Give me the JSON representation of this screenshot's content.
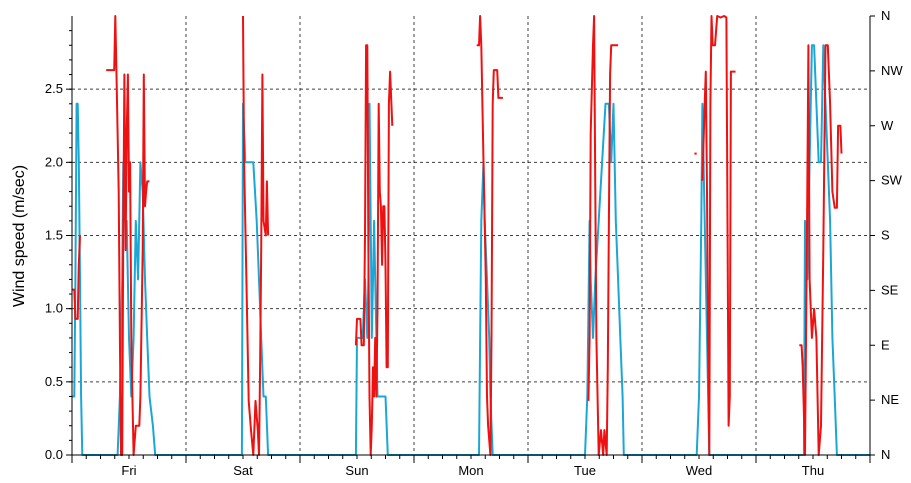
{
  "chart_data": {
    "type": "line",
    "ylabel": "Wind speed (m/sec)",
    "ylim": [
      0,
      3.0
    ],
    "yticks": [
      "0.0",
      "0.5",
      "1.0",
      "1.5",
      "2.0",
      "2.5"
    ],
    "y2ticks": [
      "N",
      "NE",
      "E",
      "SE",
      "S",
      "SW",
      "W",
      "NW",
      "N"
    ],
    "xlim": [
      0,
      7
    ],
    "categories": [
      "Fri",
      "Sat",
      "Sun",
      "Mon",
      "Tue",
      "Wed",
      "Thu"
    ],
    "grid": true,
    "colors": {
      "speed": "#1aa7d6",
      "direction": "#ee1111"
    },
    "series": [
      {
        "key": "speed",
        "axis": "left",
        "points": [
          [
            0.0,
            0.4
          ],
          [
            0.02,
            0.4
          ],
          [
            0.03,
            1.2
          ],
          [
            0.04,
            2.4
          ],
          [
            0.05,
            2.4
          ],
          [
            0.06,
            2.0
          ],
          [
            0.07,
            1.2
          ],
          [
            0.08,
            0.4
          ],
          [
            0.09,
            0.0
          ],
          [
            0.4,
            0.0
          ],
          [
            0.42,
            0.4
          ],
          [
            0.44,
            1.2
          ],
          [
            0.45,
            2.0
          ],
          [
            0.46,
            1.6
          ],
          [
            0.48,
            1.6
          ],
          [
            0.5,
            0.8
          ],
          [
            0.52,
            0.4
          ],
          [
            0.54,
            0.8
          ],
          [
            0.56,
            1.6
          ],
          [
            0.58,
            1.2
          ],
          [
            0.6,
            2.0
          ],
          [
            0.62,
            1.8
          ],
          [
            0.64,
            1.2
          ],
          [
            0.66,
            0.8
          ],
          [
            0.68,
            0.4
          ],
          [
            0.71,
            0.2
          ],
          [
            0.73,
            0.0
          ],
          [
            1.0,
            0.0
          ],
          [
            1.49,
            0.0
          ],
          [
            1.5,
            2.4
          ],
          [
            1.52,
            2.0
          ],
          [
            1.55,
            2.0
          ],
          [
            1.59,
            2.0
          ],
          [
            1.62,
            1.6
          ],
          [
            1.64,
            1.2
          ],
          [
            1.66,
            0.8
          ],
          [
            1.68,
            0.4
          ],
          [
            1.7,
            0.4
          ],
          [
            1.72,
            0.0
          ],
          [
            2.0,
            0.0
          ],
          [
            2.49,
            0.0
          ],
          [
            2.5,
            0.8
          ],
          [
            2.52,
            0.8
          ],
          [
            2.55,
            0.8
          ],
          [
            2.57,
            1.2
          ],
          [
            2.59,
            0.8
          ],
          [
            2.6,
            1.2
          ],
          [
            2.61,
            2.4
          ],
          [
            2.62,
            1.6
          ],
          [
            2.63,
            0.8
          ],
          [
            2.64,
            1.2
          ],
          [
            2.65,
            1.6
          ],
          [
            2.66,
            1.2
          ],
          [
            2.67,
            0.8
          ],
          [
            2.68,
            0.4
          ],
          [
            2.7,
            0.4
          ],
          [
            2.73,
            0.4
          ],
          [
            2.75,
            0.4
          ],
          [
            2.77,
            0.0
          ],
          [
            3.0,
            0.0
          ],
          [
            3.57,
            0.0
          ],
          [
            3.59,
            1.6
          ],
          [
            3.61,
            2.0
          ],
          [
            3.62,
            1.6
          ],
          [
            3.64,
            1.2
          ],
          [
            3.66,
            0.8
          ],
          [
            3.67,
            0.4
          ],
          [
            3.69,
            0.0
          ],
          [
            4.0,
            0.0
          ],
          [
            4.5,
            0.0
          ],
          [
            4.52,
            0.4
          ],
          [
            4.54,
            1.6
          ],
          [
            4.55,
            1.2
          ],
          [
            4.57,
            0.8
          ],
          [
            4.59,
            1.2
          ],
          [
            4.62,
            1.6
          ],
          [
            4.65,
            2.0
          ],
          [
            4.68,
            2.4
          ],
          [
            4.71,
            2.4
          ],
          [
            4.73,
            2.0
          ],
          [
            4.75,
            2.4
          ],
          [
            4.77,
            1.6
          ],
          [
            4.79,
            1.2
          ],
          [
            4.81,
            0.8
          ],
          [
            4.83,
            0.4
          ],
          [
            4.84,
            0.0
          ],
          [
            5.0,
            0.0
          ],
          [
            5.48,
            0.0
          ],
          [
            5.5,
            0.4
          ],
          [
            5.52,
            1.6
          ],
          [
            5.53,
            2.4
          ],
          [
            5.55,
            1.6
          ],
          [
            5.57,
            0.8
          ],
          [
            5.59,
            0.0
          ],
          [
            6.0,
            0.0
          ],
          [
            6.42,
            0.0
          ],
          [
            6.43,
            1.6
          ],
          [
            6.45,
            1.2
          ],
          [
            6.47,
            2.0
          ],
          [
            6.49,
            2.8
          ],
          [
            6.51,
            2.8
          ],
          [
            6.53,
            2.4
          ],
          [
            6.55,
            2.0
          ],
          [
            6.57,
            2.0
          ],
          [
            6.59,
            2.8
          ],
          [
            6.61,
            2.4
          ],
          [
            6.63,
            2.0
          ],
          [
            6.65,
            1.6
          ],
          [
            6.67,
            0.8
          ],
          [
            6.69,
            0.4
          ],
          [
            6.71,
            0.0
          ],
          [
            7.0,
            0.0
          ]
        ]
      },
      {
        "key": "direction",
        "axis": "right",
        "segments": [
          [
            [
              0.0,
              1.13
            ],
            [
              0.02,
              1.13
            ],
            [
              0.03,
              0.93
            ],
            [
              0.05,
              0.93
            ],
            [
              0.06,
              1.3
            ],
            [
              0.07,
              1.5
            ]
          ],
          [
            [
              0.3,
              2.63
            ],
            [
              0.37,
              2.63
            ],
            [
              0.38,
              3.0
            ],
            [
              0.39,
              2.6
            ],
            [
              0.41,
              1.8
            ],
            [
              0.42,
              0.8
            ],
            [
              0.43,
              0.0
            ],
            [
              0.44,
              0.0
            ],
            [
              0.45,
              1.6
            ],
            [
              0.46,
              2.6
            ],
            [
              0.47,
              1.4
            ],
            [
              0.48,
              2.2
            ],
            [
              0.49,
              2.6
            ],
            [
              0.5,
              1.8
            ],
            [
              0.51,
              2.0
            ],
            [
              0.52,
              0.8
            ],
            [
              0.53,
              0.4
            ],
            [
              0.54,
              0.0
            ],
            [
              0.56,
              0.2
            ],
            [
              0.59,
              0.2
            ],
            [
              0.6,
              0.4
            ],
            [
              0.62,
              1.4
            ],
            [
              0.63,
              2.6
            ],
            [
              0.64,
              1.7
            ],
            [
              0.65,
              1.8
            ],
            [
              0.66,
              1.87
            ],
            [
              0.68,
              1.87
            ]
          ],
          [
            [
              1.5,
              3.0
            ],
            [
              1.51,
              2.0
            ],
            [
              1.53,
              1.2
            ],
            [
              1.55,
              0.37
            ],
            [
              1.57,
              0.17
            ],
            [
              1.59,
              0.0
            ],
            [
              1.61,
              0.37
            ],
            [
              1.63,
              0.17
            ],
            [
              1.64,
              0.0
            ],
            [
              1.65,
              0.6
            ],
            [
              1.66,
              1.4
            ],
            [
              1.67,
              2.6
            ],
            [
              1.68,
              1.6
            ],
            [
              1.7,
              1.5
            ],
            [
              1.71,
              1.87
            ],
            [
              1.72,
              1.5
            ]
          ],
          [
            [
              2.49,
              0.75
            ],
            [
              2.5,
              0.93
            ],
            [
              2.53,
              0.93
            ],
            [
              2.54,
              0.75
            ],
            [
              2.56,
              0.75
            ],
            [
              2.57,
              1.5
            ],
            [
              2.58,
              2.8
            ],
            [
              2.59,
              2.8
            ],
            [
              2.6,
              1.4
            ],
            [
              2.61,
              0.4
            ],
            [
              2.62,
              0.0
            ],
            [
              2.63,
              0.2
            ],
            [
              2.64,
              0.6
            ],
            [
              2.65,
              0.4
            ],
            [
              2.66,
              0.8
            ],
            [
              2.67,
              0.4
            ],
            [
              2.68,
              1.0
            ],
            [
              2.69,
              2.4
            ],
            [
              2.7,
              1.8
            ],
            [
              2.71,
              1.7
            ],
            [
              2.72,
              1.3
            ],
            [
              2.73,
              1.7
            ],
            [
              2.74,
              1.7
            ],
            [
              2.75,
              1.3
            ],
            [
              2.76,
              0.6
            ],
            [
              2.77,
              0.6
            ],
            [
              2.78,
              2.4
            ],
            [
              2.79,
              2.62
            ],
            [
              2.81,
              2.25
            ]
          ],
          [
            [
              3.55,
              2.8
            ],
            [
              3.57,
              2.8
            ],
            [
              3.58,
              3.0
            ],
            [
              3.59,
              2.8
            ],
            [
              3.61,
              2.0
            ],
            [
              3.63,
              1.2
            ],
            [
              3.64,
              0.4
            ],
            [
              3.65,
              0.2
            ],
            [
              3.67,
              0.0
            ],
            [
              3.68,
              0.8
            ],
            [
              3.69,
              2.4
            ],
            [
              3.7,
              2.63
            ],
            [
              3.73,
              2.63
            ],
            [
              3.74,
              2.44
            ],
            [
              3.78,
              2.44
            ]
          ],
          [
            [
              4.53,
              0.37
            ],
            [
              4.54,
              0.8
            ],
            [
              4.55,
              2.2
            ],
            [
              4.57,
              2.8
            ],
            [
              4.58,
              3.0
            ],
            [
              4.59,
              1.8
            ],
            [
              4.6,
              0.8
            ],
            [
              4.62,
              0.0
            ],
            [
              4.64,
              0.17
            ],
            [
              4.66,
              0.0
            ],
            [
              4.67,
              0.17
            ],
            [
              4.69,
              0.0
            ],
            [
              4.7,
              0.6
            ],
            [
              4.71,
              1.6
            ],
            [
              4.72,
              2.6
            ],
            [
              4.73,
              2.8
            ],
            [
              4.79,
              2.8
            ]
          ],
          [
            [
              5.46,
              2.06
            ],
            [
              5.48,
              2.06
            ]
          ],
          [
            [
              5.52,
              1.88
            ],
            [
              5.53,
              1.88
            ],
            [
              5.55,
              2.4
            ],
            [
              5.56,
              2.62
            ],
            [
              5.57,
              1.8
            ],
            [
              5.58,
              0.8
            ],
            [
              5.59,
              0.0
            ],
            [
              5.6,
              2.4
            ],
            [
              5.61,
              3.0
            ],
            [
              5.62,
              2.8
            ],
            [
              5.64,
              2.8
            ],
            [
              5.66,
              3.0
            ],
            [
              5.69,
              2.99
            ],
            [
              5.72,
              3.0
            ],
            [
              5.74,
              2.99
            ],
            [
              5.76,
              0.2
            ],
            [
              5.77,
              0.4
            ],
            [
              5.78,
              2.62
            ],
            [
              5.82,
              2.62
            ]
          ],
          [
            [
              6.38,
              0.75
            ],
            [
              6.4,
              0.75
            ],
            [
              6.41,
              0.6
            ],
            [
              6.43,
              0.0
            ],
            [
              6.45,
              1.8
            ],
            [
              6.46,
              2.8
            ],
            [
              6.47,
              1.2
            ],
            [
              6.49,
              0.8
            ],
            [
              6.51,
              1.0
            ],
            [
              6.53,
              0.8
            ],
            [
              6.55,
              0.0
            ],
            [
              6.57,
              0.2
            ],
            [
              6.59,
              1.4
            ],
            [
              6.61,
              2.8
            ],
            [
              6.63,
              2.8
            ],
            [
              6.65,
              2.4
            ],
            [
              6.67,
              1.8
            ],
            [
              6.69,
              1.69
            ],
            [
              6.71,
              1.69
            ],
            [
              6.72,
              2.25
            ],
            [
              6.74,
              2.25
            ],
            [
              6.75,
              2.06
            ]
          ]
        ]
      }
    ]
  }
}
